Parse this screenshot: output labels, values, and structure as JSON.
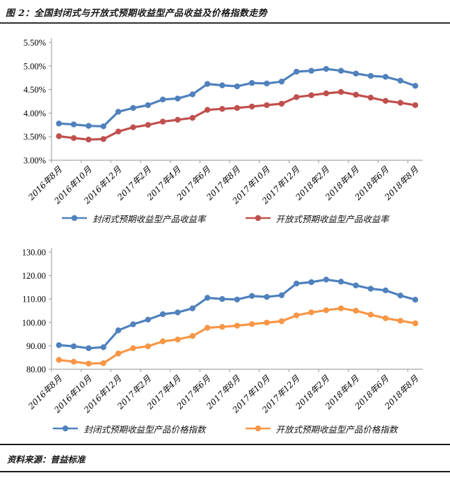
{
  "title": "图 2：全国封闭式与开放式预期收益型产品收益及价格指数走势",
  "source": "资料来源：普益标准",
  "colors": {
    "closed_blue": "#4F81BD",
    "open_red": "#C0504D",
    "open_orange": "#F79646",
    "axis": "#A6A6A6",
    "label_text": "#000000"
  },
  "chart_data": [
    {
      "type": "line",
      "name": "yield-chart",
      "categories": [
        "2016年8月",
        "2016年9月",
        "2016年10月",
        "2016年11月",
        "2016年12月",
        "2017年1月",
        "2017年2月",
        "2017年3月",
        "2017年4月",
        "2017年5月",
        "2017年6月",
        "2017年7月",
        "2017年8月",
        "2017年9月",
        "2017年10月",
        "2017年11月",
        "2017年12月",
        "2018年1月",
        "2018年2月",
        "2018年3月",
        "2018年4月",
        "2018年5月",
        "2018年6月",
        "2018年7月",
        "2018年8月"
      ],
      "tick_every": 2,
      "ylim": [
        3.0,
        5.5
      ],
      "ytick_step": 0.5,
      "yformat": "percent2",
      "grid": false,
      "legend_position": "bottom",
      "series": [
        {
          "key": "closed",
          "name": "封闭式预期收益型产品收益率",
          "color_key": "closed_blue",
          "values": [
            3.78,
            3.76,
            3.73,
            3.72,
            4.03,
            4.11,
            4.17,
            4.29,
            4.31,
            4.4,
            4.62,
            4.59,
            4.57,
            4.64,
            4.63,
            4.67,
            4.88,
            4.9,
            4.94,
            4.9,
            4.84,
            4.79,
            4.77,
            4.69,
            4.58
          ]
        },
        {
          "key": "open",
          "name": "开放式预期收益型产品收益率",
          "color_key": "open_red",
          "values": [
            3.51,
            3.47,
            3.44,
            3.45,
            3.61,
            3.7,
            3.75,
            3.82,
            3.86,
            3.9,
            4.07,
            4.09,
            4.11,
            4.14,
            4.17,
            4.2,
            4.34,
            4.38,
            4.42,
            4.45,
            4.39,
            4.33,
            4.26,
            4.22,
            4.17
          ]
        }
      ]
    },
    {
      "type": "line",
      "name": "price-index-chart",
      "categories": [
        "2016年8月",
        "2016年9月",
        "2016年10月",
        "2016年11月",
        "2016年12月",
        "2017年1月",
        "2017年2月",
        "2017年3月",
        "2017年4月",
        "2017年5月",
        "2017年6月",
        "2017年7月",
        "2017年8月",
        "2017年9月",
        "2017年10月",
        "2017年11月",
        "2017年12月",
        "2018年1月",
        "2018年2月",
        "2018年3月",
        "2018年4月",
        "2018年5月",
        "2018年6月",
        "2018年7月",
        "2018年8月"
      ],
      "tick_every": 2,
      "ylim": [
        80,
        130
      ],
      "ytick_step": 10,
      "yformat": "fixed2",
      "grid": false,
      "legend_position": "bottom",
      "series": [
        {
          "key": "closed",
          "name": "封闭式预期收益型产品价格指数",
          "color_key": "closed_blue",
          "values": [
            90.3,
            89.8,
            89.0,
            89.4,
            96.6,
            99.2,
            101.2,
            103.5,
            104.3,
            106.0,
            110.5,
            110.0,
            109.8,
            111.3,
            110.9,
            111.6,
            116.6,
            117.2,
            118.3,
            117.4,
            115.8,
            114.4,
            113.7,
            111.5,
            109.7
          ]
        },
        {
          "key": "open",
          "name": "开放式预期收益型产品价格指数",
          "color_key": "open_orange",
          "values": [
            84.0,
            83.2,
            82.4,
            82.6,
            86.7,
            89.0,
            89.8,
            91.9,
            92.7,
            94.2,
            97.7,
            98.1,
            98.6,
            99.3,
            99.9,
            100.5,
            103.0,
            104.3,
            105.2,
            106.0,
            105.0,
            103.3,
            101.8,
            100.7,
            99.6
          ]
        }
      ]
    }
  ]
}
